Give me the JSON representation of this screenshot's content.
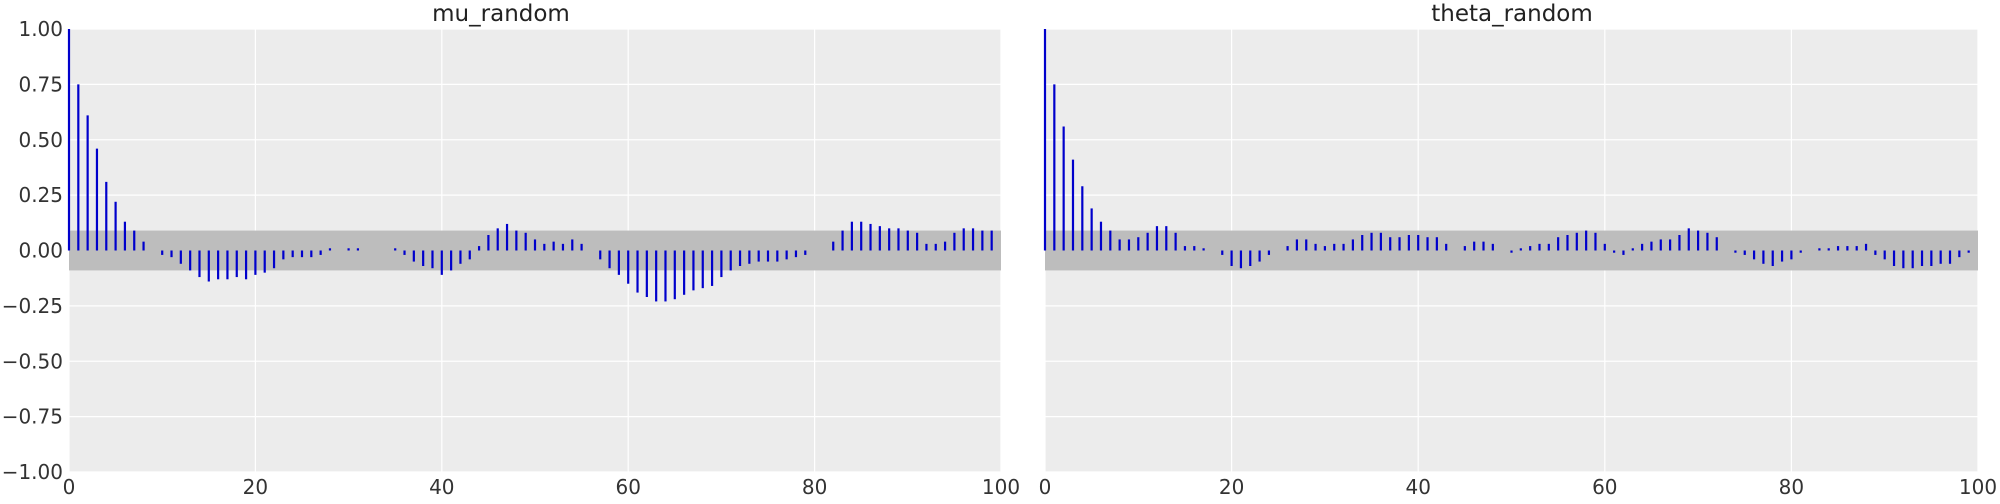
{
  "chart_data": [
    {
      "type": "bar",
      "subtype": "autocorrelation-stem",
      "title": "mu_random",
      "xlabel": "",
      "ylabel": "",
      "xlim": [
        0,
        100
      ],
      "ylim": [
        -1.0,
        1.0
      ],
      "xticks": [
        "0",
        "20",
        "40",
        "60",
        "80",
        "100"
      ],
      "yticks": [
        "1.00",
        "0.75",
        "0.50",
        "0.25",
        "0.00",
        "−0.25",
        "−0.50",
        "−0.75",
        "−1.00"
      ],
      "confidence_band": [
        -0.09,
        0.09
      ],
      "grid": true,
      "colors": {
        "stem": "#0000cc",
        "band": "#bdbdbd",
        "background": "#ececec"
      },
      "x": [
        0,
        1,
        2,
        3,
        4,
        5,
        6,
        7,
        8,
        9,
        10,
        11,
        12,
        13,
        14,
        15,
        16,
        17,
        18,
        19,
        20,
        21,
        22,
        23,
        24,
        25,
        26,
        27,
        28,
        29,
        30,
        31,
        32,
        33,
        34,
        35,
        36,
        37,
        38,
        39,
        40,
        41,
        42,
        43,
        44,
        45,
        46,
        47,
        48,
        49,
        50,
        51,
        52,
        53,
        54,
        55,
        56,
        57,
        58,
        59,
        60,
        61,
        62,
        63,
        64,
        65,
        66,
        67,
        68,
        69,
        70,
        71,
        72,
        73,
        74,
        75,
        76,
        77,
        78,
        79,
        80,
        81,
        82,
        83,
        84,
        85,
        86,
        87,
        88,
        89,
        90,
        91,
        92,
        93,
        94,
        95,
        96,
        97,
        98,
        99
      ],
      "values": [
        1.0,
        0.75,
        0.61,
        0.46,
        0.31,
        0.22,
        0.13,
        0.09,
        0.04,
        0.0,
        -0.02,
        -0.03,
        -0.06,
        -0.09,
        -0.12,
        -0.14,
        -0.13,
        -0.13,
        -0.12,
        -0.13,
        -0.11,
        -0.1,
        -0.08,
        -0.04,
        -0.03,
        -0.03,
        -0.03,
        -0.02,
        0.01,
        0.0,
        0.01,
        0.01,
        0.0,
        0.0,
        0.0,
        0.01,
        -0.02,
        -0.05,
        -0.07,
        -0.08,
        -0.11,
        -0.09,
        -0.06,
        -0.04,
        0.02,
        0.07,
        0.1,
        0.12,
        0.09,
        0.08,
        0.05,
        0.03,
        0.04,
        0.03,
        0.05,
        0.03,
        0.0,
        -0.04,
        -0.08,
        -0.11,
        -0.15,
        -0.19,
        -0.21,
        -0.23,
        -0.23,
        -0.22,
        -0.2,
        -0.18,
        -0.17,
        -0.16,
        -0.12,
        -0.09,
        -0.07,
        -0.06,
        -0.05,
        -0.05,
        -0.05,
        -0.04,
        -0.03,
        -0.02,
        0.0,
        0.0,
        0.04,
        0.09,
        0.13,
        0.13,
        0.12,
        0.11,
        0.1,
        0.1,
        0.09,
        0.08,
        0.03,
        0.03,
        0.04,
        0.08,
        0.1,
        0.1,
        0.09,
        0.09
      ]
    },
    {
      "type": "bar",
      "subtype": "autocorrelation-stem",
      "title": "theta_random",
      "xlabel": "",
      "ylabel": "",
      "xlim": [
        0,
        100
      ],
      "ylim": [
        -1.0,
        1.0
      ],
      "xticks": [
        "0",
        "20",
        "40",
        "60",
        "80",
        "100"
      ],
      "yticks": [],
      "confidence_band": [
        -0.09,
        0.09
      ],
      "grid": true,
      "colors": {
        "stem": "#0000cc",
        "band": "#bdbdbd",
        "background": "#ececec"
      },
      "x": [
        0,
        1,
        2,
        3,
        4,
        5,
        6,
        7,
        8,
        9,
        10,
        11,
        12,
        13,
        14,
        15,
        16,
        17,
        18,
        19,
        20,
        21,
        22,
        23,
        24,
        25,
        26,
        27,
        28,
        29,
        30,
        31,
        32,
        33,
        34,
        35,
        36,
        37,
        38,
        39,
        40,
        41,
        42,
        43,
        44,
        45,
        46,
        47,
        48,
        49,
        50,
        51,
        52,
        53,
        54,
        55,
        56,
        57,
        58,
        59,
        60,
        61,
        62,
        63,
        64,
        65,
        66,
        67,
        68,
        69,
        70,
        71,
        72,
        73,
        74,
        75,
        76,
        77,
        78,
        79,
        80,
        81,
        82,
        83,
        84,
        85,
        86,
        87,
        88,
        89,
        90,
        91,
        92,
        93,
        94,
        95,
        96,
        97,
        98,
        99
      ],
      "values": [
        1.0,
        0.75,
        0.56,
        0.41,
        0.29,
        0.19,
        0.13,
        0.09,
        0.05,
        0.05,
        0.06,
        0.08,
        0.11,
        0.11,
        0.08,
        0.02,
        0.02,
        0.01,
        0.0,
        -0.02,
        -0.07,
        -0.08,
        -0.07,
        -0.05,
        -0.02,
        0.0,
        0.02,
        0.05,
        0.05,
        0.03,
        0.02,
        0.03,
        0.03,
        0.05,
        0.07,
        0.08,
        0.08,
        0.06,
        0.06,
        0.07,
        0.07,
        0.06,
        0.06,
        0.03,
        0.0,
        0.02,
        0.04,
        0.04,
        0.03,
        0.0,
        -0.01,
        0.01,
        0.02,
        0.03,
        0.03,
        0.06,
        0.07,
        0.08,
        0.09,
        0.08,
        0.03,
        -0.01,
        -0.02,
        0.01,
        0.03,
        0.04,
        0.05,
        0.05,
        0.07,
        0.1,
        0.09,
        0.08,
        0.06,
        0.0,
        -0.01,
        -0.02,
        -0.04,
        -0.06,
        -0.07,
        -0.05,
        -0.04,
        -0.01,
        0.0,
        0.01,
        0.01,
        0.02,
        0.02,
        0.02,
        0.03,
        -0.02,
        -0.04,
        -0.07,
        -0.08,
        -0.08,
        -0.07,
        -0.07,
        -0.06,
        -0.06,
        -0.03,
        -0.01
      ]
    }
  ]
}
